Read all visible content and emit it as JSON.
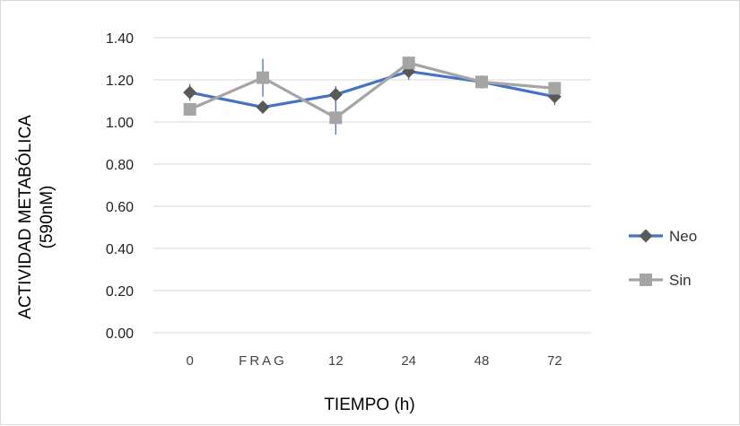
{
  "chart_data": {
    "type": "line",
    "categories": [
      "0",
      "FRAG",
      "12",
      "24",
      "48",
      "72"
    ],
    "series": [
      {
        "name": "Neo",
        "color": "#4472C4",
        "marker": "diamond",
        "marker_color": "#595959",
        "values": [
          1.14,
          1.07,
          1.13,
          1.24,
          1.19,
          1.12
        ],
        "error": [
          0.04,
          0.03,
          0.04,
          0.04,
          0.02,
          0.04
        ]
      },
      {
        "name": "Sin",
        "color": "#A5A5A5",
        "marker": "square",
        "marker_color": "#A5A5A5",
        "values": [
          1.06,
          1.21,
          1.02,
          1.28,
          1.19,
          1.16
        ],
        "error": [
          0.03,
          0.09,
          0.08,
          0.03,
          0.02,
          0.03
        ]
      }
    ],
    "title": "",
    "xlabel": "TIEMPO (h)",
    "ylabel": "ACTIVIDAD METABÓLICA (590nM)",
    "ylabel_lines": [
      "ACTIVIDAD METABÓLICA",
      "(590nM)"
    ],
    "ylim": [
      0,
      1.4
    ],
    "yticks": [
      "0.00",
      "0.20",
      "0.40",
      "0.60",
      "0.80",
      "1.00",
      "1.20",
      "1.40"
    ],
    "grid": true,
    "legend_position": "right"
  }
}
